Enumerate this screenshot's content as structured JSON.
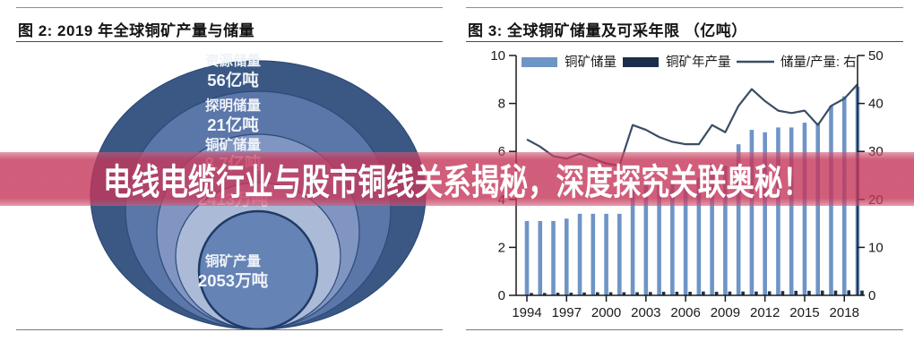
{
  "banner": {
    "text": "电线电缆行业与股市铜线关系揭秘，深度探究关联奥秘！",
    "color": "#c5365a"
  },
  "figure2": {
    "title": "图 2:  2019 年全球铜矿产量与储量",
    "circles": [
      {
        "label": "资源储量",
        "value": "56亿吨",
        "color": "#3b5885"
      },
      {
        "label": "探明储量",
        "value": "21亿吨",
        "color": "#5b76a8"
      },
      {
        "label": "铜矿储量",
        "value": "8.7亿吨",
        "color": "#8095c1"
      },
      {
        "label": "",
        "value": "2413万吨",
        "color": "#abbad7"
      },
      {
        "label": "铜矿产量",
        "value": "2053万吨",
        "color": "#6583b5"
      }
    ]
  },
  "figure3": {
    "title": "图 3:  全球铜矿储量及可采年限 （亿吨）",
    "colors": {
      "reserve_bar": "#6f94c6",
      "production_bar": "#1c2e4a",
      "ratio_line": "#3c4d63",
      "axis": "#1a1a1a"
    }
  },
  "chart_data": [
    {
      "type": "nested-circles",
      "title": "图 2:  2019 年全球铜矿产量与储量",
      "items": [
        {
          "label": "资源储量",
          "value": "56亿吨"
        },
        {
          "label": "探明储量",
          "value": "21亿吨"
        },
        {
          "label": "铜矿储量",
          "value": "8.7亿吨"
        },
        {
          "label": "",
          "value": "2413万吨"
        },
        {
          "label": "铜矿产量",
          "value": "2053万吨"
        }
      ]
    },
    {
      "type": "bar",
      "title": "图 3:  全球铜矿储量及可采年限 （亿吨）",
      "x": [
        1994,
        1995,
        1996,
        1997,
        1998,
        1999,
        2000,
        2001,
        2002,
        2003,
        2004,
        2005,
        2006,
        2007,
        2008,
        2009,
        2010,
        2011,
        2012,
        2013,
        2014,
        2015,
        2016,
        2017,
        2018,
        2019
      ],
      "series": [
        {
          "name": "铜矿储量",
          "type": "bar",
          "axis": "left",
          "values": [
            3.1,
            3.1,
            3.1,
            3.2,
            3.4,
            3.4,
            3.4,
            3.4,
            4.8,
            4.7,
            4.7,
            4.7,
            4.8,
            4.9,
            5.5,
            5.4,
            6.3,
            6.9,
            6.8,
            7.0,
            7.0,
            7.2,
            7.2,
            7.9,
            8.3,
            8.7
          ]
        },
        {
          "name": "铜矿年产量",
          "type": "bar",
          "axis": "left",
          "values": [
            0.1,
            0.1,
            0.11,
            0.11,
            0.12,
            0.13,
            0.13,
            0.13,
            0.13,
            0.14,
            0.15,
            0.15,
            0.15,
            0.16,
            0.15,
            0.16,
            0.16,
            0.16,
            0.17,
            0.18,
            0.19,
            0.19,
            0.2,
            0.2,
            0.21,
            0.2
          ]
        },
        {
          "name": "储量/产量: 右",
          "type": "line",
          "axis": "right",
          "values": [
            32.5,
            31.0,
            29.0,
            28.5,
            29.5,
            28.5,
            27.5,
            27.0,
            35.5,
            34.5,
            33.0,
            32.0,
            31.5,
            31.5,
            35.5,
            34.0,
            39.5,
            43.0,
            40.5,
            38.5,
            38.0,
            38.5,
            35.5,
            39.5,
            41.0,
            44.0
          ]
        }
      ],
      "ylim_left": [
        0,
        10
      ],
      "ylim_right": [
        0,
        50
      ],
      "yticks_left": [
        0,
        2,
        4,
        6,
        8,
        10
      ],
      "yticks_right": [
        0,
        10,
        20,
        30,
        40,
        50
      ],
      "xticks": [
        1994,
        1997,
        2000,
        2003,
        2006,
        2009,
        2012,
        2015,
        2018
      ],
      "legend_position": "top",
      "grid": false
    }
  ]
}
